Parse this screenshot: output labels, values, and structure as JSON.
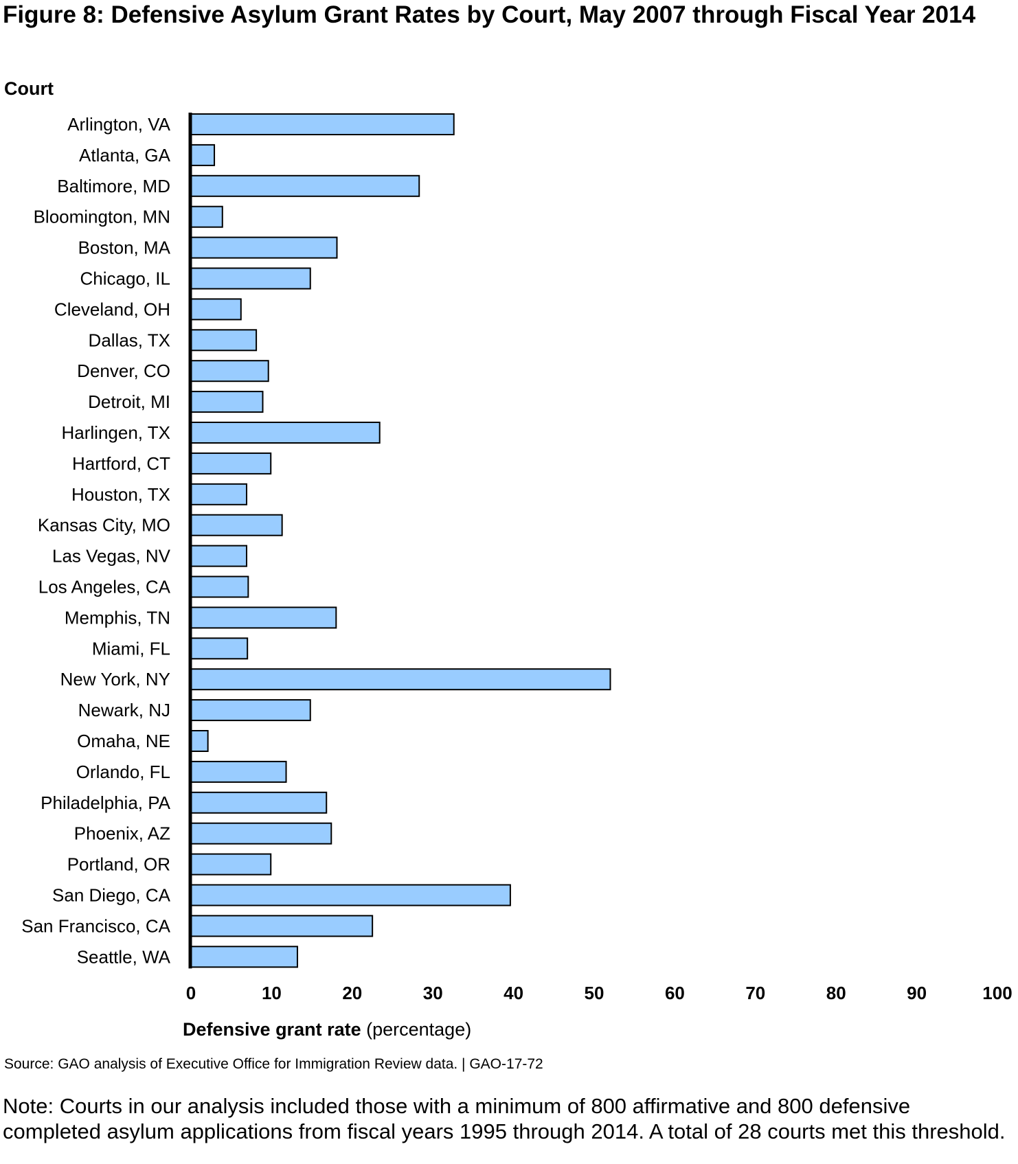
{
  "chart_data": {
    "type": "bar",
    "orientation": "horizontal",
    "title": "Figure 8: Defensive Asylum Grant Rates by Court, May 2007 through Fiscal Year 2014",
    "ylabel": "Court",
    "xlabel_bold": "Defensive grant rate",
    "xlabel_rest": " (percentage)",
    "xlim": [
      0,
      100
    ],
    "xticks": [
      0,
      10,
      20,
      30,
      40,
      50,
      60,
      70,
      80,
      90,
      100
    ],
    "grid": false,
    "categories": [
      "Arlington, VA",
      "Atlanta, GA",
      "Baltimore, MD",
      "Bloomington, MN",
      "Boston, MA",
      "Chicago, IL",
      "Cleveland, OH",
      "Dallas, TX",
      "Denver, CO",
      "Detroit, MI",
      "Harlingen, TX",
      "Hartford, CT",
      "Houston, TX",
      "Kansas City, MO",
      "Las Vegas, NV",
      "Los Angeles, CA",
      "Memphis, TN",
      "Miami, FL",
      "New York, NY",
      "Newark, NJ",
      "Omaha, NE",
      "Orlando, FL",
      "Philadelphia, PA",
      "Phoenix, AZ",
      "Portland, OR",
      "San Diego, CA",
      "San Francisco, CA",
      "Seattle, WA"
    ],
    "values": [
      32.6,
      2.9,
      28.3,
      3.9,
      18.1,
      14.8,
      6.2,
      8.1,
      9.6,
      8.9,
      23.4,
      9.9,
      6.9,
      11.3,
      6.9,
      7.1,
      18.0,
      7.0,
      52.0,
      14.8,
      2.1,
      11.8,
      16.8,
      17.4,
      9.9,
      39.6,
      22.5,
      13.2
    ],
    "bar_color": "#99ccff",
    "bar_edge_color": "#000000"
  },
  "source": "Source: GAO analysis of Executive Office for Immigration Review data.  |  GAO-17-72",
  "note": "Note: Courts in our analysis included those with a minimum of 800 affirmative and 800 defensive completed asylum applications from fiscal years 1995 through 2014. A total of 28 courts met this threshold."
}
